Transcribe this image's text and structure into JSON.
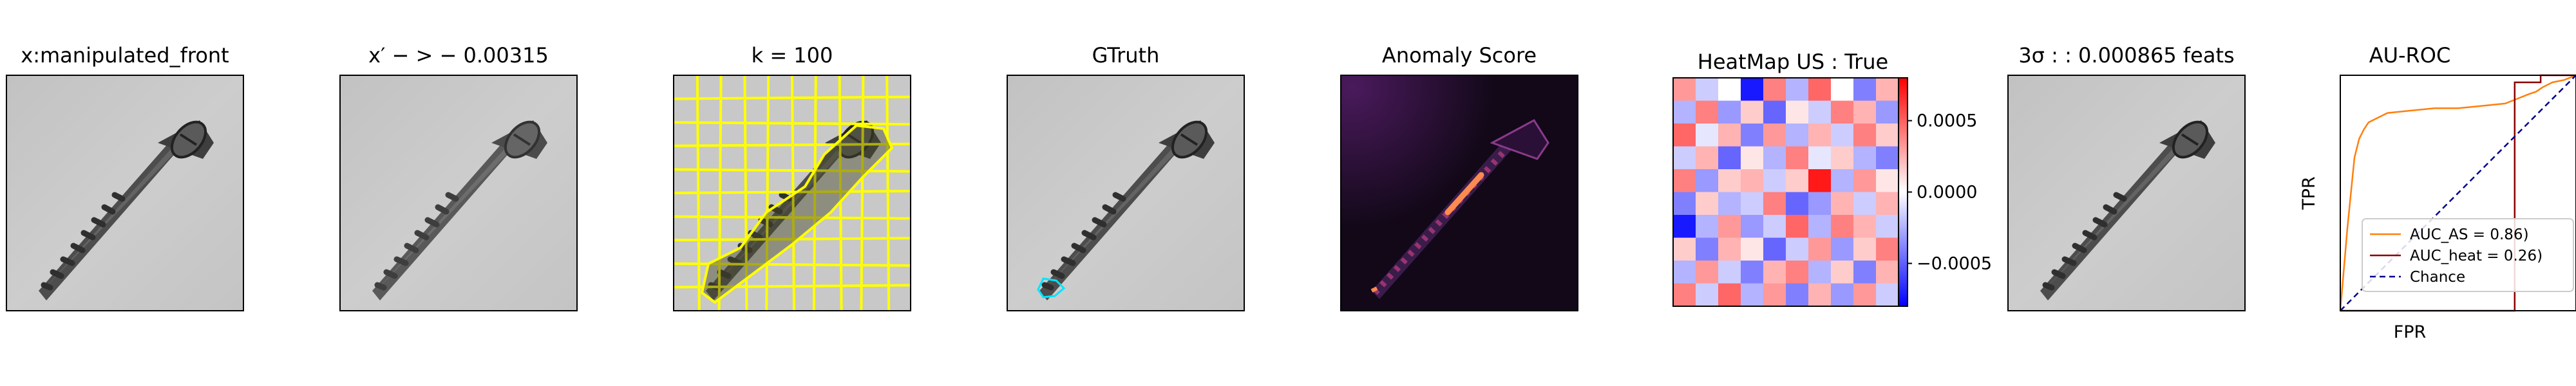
{
  "panels": [
    {
      "title": "x:manipulated_front"
    },
    {
      "title": "x′ − > − 0.00315"
    },
    {
      "title": "k = 100"
    },
    {
      "title": "GTruth"
    },
    {
      "title": "Anomaly Score"
    },
    {
      "title": "HeatMap US : True"
    },
    {
      "title": "3σ : : 0.000865 feats"
    },
    {
      "title": "AU-ROC"
    }
  ],
  "colors": {
    "screw_background": "#c8c8c8",
    "segment_boundaries": "#ffff00",
    "ground_truth_contour": "#00e5ff",
    "anomaly_background": "#120818",
    "anomaly_hot": "#ff8a50",
    "colorbar_neg": "#0000ff",
    "colorbar_pos": "#ff0000",
    "auc_as": "#ff7f0e",
    "auc_heat": "#8b0000",
    "chance": "#00008b"
  },
  "heatmap_colorbar": {
    "type": "colorbar",
    "colormap": "bwr",
    "ylim": [
      -0.0008,
      0.0008
    ],
    "ticks": [
      0.0005,
      0.0,
      -0.0005
    ],
    "tick_labels": [
      "0.0005",
      "0.0000",
      "−0.0005"
    ]
  },
  "chart_data": {
    "type": "line",
    "title": "AU-ROC",
    "xlabel": "FPR",
    "ylabel": "TPR",
    "xlim": [
      0,
      1
    ],
    "ylim": [
      0,
      1
    ],
    "legend_position": "lower-right",
    "series": [
      {
        "name": "AUC_AS = 0.86)",
        "style": "solid",
        "color": "#ff7f0e",
        "x": [
          0,
          0.03,
          0.05,
          0.06,
          0.08,
          0.1,
          0.12,
          0.16,
          0.2,
          0.3,
          0.4,
          0.5,
          0.6,
          0.7,
          0.75,
          0.8,
          0.83,
          0.86,
          0.9,
          0.95,
          1.0
        ],
        "y": [
          0,
          0.35,
          0.55,
          0.65,
          0.73,
          0.77,
          0.8,
          0.82,
          0.84,
          0.85,
          0.86,
          0.86,
          0.87,
          0.88,
          0.9,
          0.92,
          0.93,
          0.95,
          0.97,
          0.98,
          1.0
        ]
      },
      {
        "name": "AUC_heat = 0.26)",
        "style": "solid",
        "color": "#8b0000",
        "x": [
          0,
          0.74,
          0.74,
          0.85,
          0.85,
          1.0
        ],
        "y": [
          0,
          0,
          0.97,
          0.97,
          1.0,
          1.0
        ]
      },
      {
        "name": "Chance",
        "style": "dashed",
        "color": "#00008b",
        "x": [
          0,
          1
        ],
        "y": [
          0,
          1
        ]
      }
    ]
  }
}
